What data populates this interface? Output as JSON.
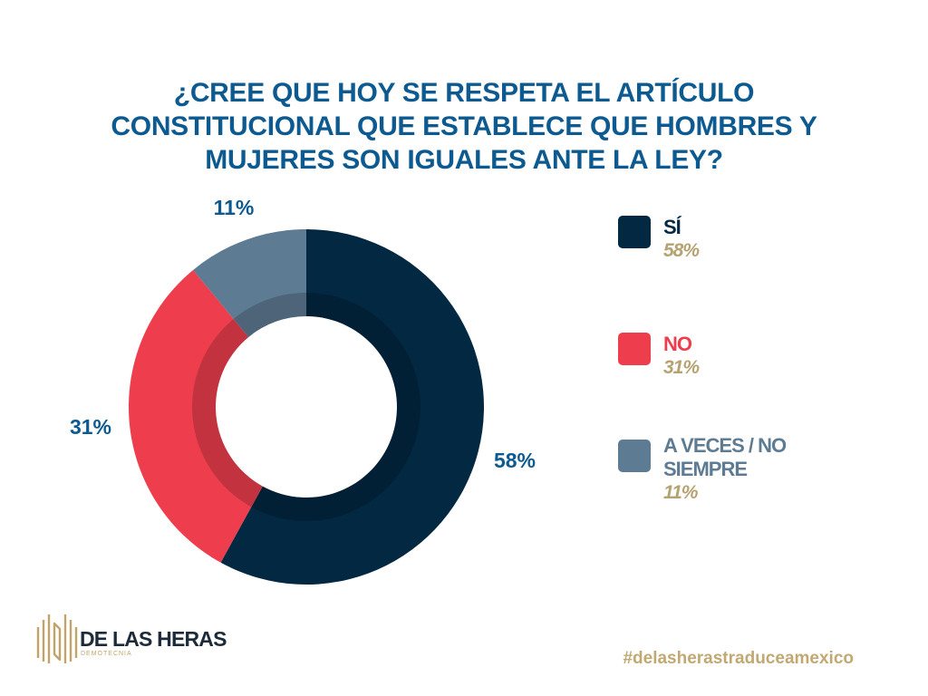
{
  "chart_data": {
    "type": "pie",
    "title_lines": [
      "¿CREE QUE HOY SE RESPETA EL ARTÍCULO",
      "CONSTITUCIONAL QUE ESTABLECE QUE HOMBRES Y",
      "MUJERES SON IGUALES ANTE LA LEY?"
    ],
    "donut": true,
    "legend_position": "right",
    "slices": [
      {
        "legend_label": "SÍ",
        "value": 58,
        "data_label": "58%",
        "legend_value": "58%",
        "color": "#022842",
        "label_color": "#022842"
      },
      {
        "legend_label": "NO",
        "value": 31,
        "data_label": "31%",
        "legend_value": "31%",
        "color": "#ee3e4d",
        "label_color": "#ee3e4d"
      },
      {
        "legend_label": "A VECES / NO SIEMPRE",
        "value": 11,
        "data_label": "11%",
        "legend_value": "11%",
        "color": "#5e7b94",
        "label_color": "#5e7b94"
      }
    ],
    "label_text_color": "#0d5a91",
    "legend_value_color": "#b6a271"
  },
  "logo": {
    "name": "DE LAS HERAS",
    "subtitle": "DEMOTECNIA",
    "mark_icon": "building-columns-logo"
  },
  "hashtag": "#delasherastraduceamexico",
  "colors": {
    "title": "#0d5a91",
    "gold": "#c2a872"
  }
}
